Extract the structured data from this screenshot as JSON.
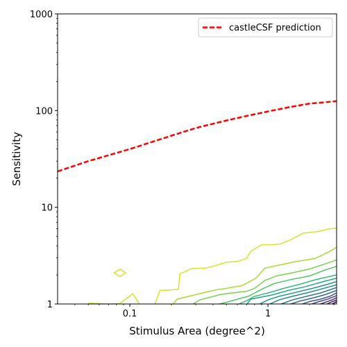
{
  "chart_data": {
    "type": "line",
    "title": "",
    "xlabel": "Stimulus Area (degree^2)",
    "ylabel": "Sensitivity",
    "xscale": "log",
    "yscale": "log",
    "xlim": [
      0.03,
      3.14
    ],
    "ylim": [
      1,
      1000
    ],
    "x_ticks": [
      {
        "value": 0.1,
        "label": "0.1"
      },
      {
        "value": 1,
        "label": "1"
      }
    ],
    "y_ticks": [
      {
        "value": 1,
        "label": "1"
      },
      {
        "value": 10,
        "label": "10"
      },
      {
        "value": 100,
        "label": "100"
      },
      {
        "value": 1000,
        "label": "1000"
      }
    ],
    "grid": false,
    "legend": {
      "position": "top-right",
      "entries": [
        "castleCSF prediction"
      ]
    },
    "series": [
      {
        "name": "castleCSF prediction",
        "style": "dashed",
        "color": "#ff0000",
        "x": [
          0.03,
          0.05,
          0.1,
          0.2,
          0.3,
          0.5,
          0.7,
          1.0,
          1.5,
          2.0,
          3.14
        ],
        "y": [
          23.5,
          30,
          40,
          55,
          66,
          79,
          88,
          98,
          110,
          118,
          125
        ]
      }
    ],
    "contours": [
      {
        "color": "#d6e22b",
        "x": [
          0.05,
          0.07,
          0.085,
          0.105,
          0.12,
          0.15,
          0.165,
          0.2,
          0.225,
          0.23,
          0.28,
          0.35,
          0.4,
          0.5,
          0.6,
          0.7,
          0.75,
          0.9,
          1.1,
          1.25,
          1.45,
          1.8,
          2.3,
          2.7,
          3.14
        ],
        "y": [
          1.02,
          1.0,
          1.01,
          1.28,
          0.95,
          0.95,
          1.38,
          1.4,
          1.42,
          2.05,
          2.32,
          2.35,
          2.45,
          2.7,
          2.75,
          2.95,
          3.5,
          4.1,
          4.1,
          4.2,
          4.6,
          5.4,
          5.6,
          5.95,
          6.1
        ]
      },
      {
        "color": "#d6e22b",
        "x": [
          0.085,
          0.093,
          0.085,
          0.077,
          0.085
        ],
        "y": [
          2.3,
          2.1,
          1.92,
          2.1,
          2.3
        ]
      },
      {
        "color": "#a5db36",
        "x": [
          0.2,
          0.22,
          0.3,
          0.42,
          0.5,
          0.65,
          0.82,
          0.95,
          1.25,
          1.6,
          2.2,
          2.8,
          3.14
        ],
        "y": [
          0.95,
          1.12,
          1.25,
          1.4,
          1.45,
          1.55,
          1.85,
          2.35,
          2.55,
          2.75,
          2.95,
          3.5,
          3.85
        ]
      },
      {
        "color": "#7ad151",
        "x": [
          0.28,
          0.32,
          0.45,
          0.55,
          0.7,
          0.8,
          0.95,
          1.15,
          1.5,
          2.0,
          2.6,
          3.14
        ],
        "y": [
          0.98,
          1.1,
          1.25,
          1.3,
          1.35,
          1.45,
          1.75,
          1.95,
          2.1,
          2.3,
          2.6,
          2.85
        ]
      },
      {
        "color": "#54c568",
        "x": [
          0.42,
          0.5,
          0.6,
          0.72,
          0.9,
          1.1,
          1.5,
          2.0,
          2.6,
          3.14
        ],
        "y": [
          0.98,
          1.04,
          1.12,
          1.2,
          1.42,
          1.62,
          1.8,
          1.95,
          2.25,
          2.45
        ]
      },
      {
        "color": "#35b779",
        "x": [
          0.6,
          0.7,
          0.8,
          1.0,
          1.3,
          1.7,
          2.2,
          3.14
        ],
        "y": [
          0.98,
          1.08,
          1.2,
          1.3,
          1.45,
          1.6,
          1.78,
          2.0
        ]
      },
      {
        "color": "#22a884",
        "x": [
          0.7,
          0.75,
          0.9,
          1.1,
          1.4,
          1.9,
          2.5,
          3.14
        ],
        "y": [
          0.98,
          1.12,
          1.18,
          1.25,
          1.38,
          1.52,
          1.7,
          1.85
        ]
      },
      {
        "color": "#1f988b",
        "x": [
          0.85,
          1.0,
          1.2,
          1.6,
          2.1,
          2.7,
          3.14
        ],
        "y": [
          0.98,
          1.1,
          1.2,
          1.32,
          1.45,
          1.6,
          1.7
        ]
      },
      {
        "color": "#23888e",
        "x": [
          1.0,
          1.2,
          1.5,
          1.9,
          2.4,
          3.14
        ],
        "y": [
          0.98,
          1.1,
          1.2,
          1.3,
          1.42,
          1.58
        ]
      },
      {
        "color": "#2a788e",
        "x": [
          1.2,
          1.5,
          1.9,
          2.4,
          3.14
        ],
        "y": [
          0.98,
          1.1,
          1.2,
          1.3,
          1.48
        ]
      },
      {
        "color": "#31688e",
        "x": [
          1.4,
          1.7,
          2.1,
          2.6,
          3.14
        ],
        "y": [
          0.98,
          1.07,
          1.15,
          1.25,
          1.38
        ]
      },
      {
        "color": "#39568c",
        "x": [
          1.7,
          2.0,
          2.4,
          2.8,
          3.14
        ],
        "y": [
          0.98,
          1.06,
          1.12,
          1.2,
          1.3
        ]
      },
      {
        "color": "#414487",
        "x": [
          2.0,
          2.3,
          2.7,
          3.14
        ],
        "y": [
          0.98,
          1.05,
          1.12,
          1.22
        ]
      },
      {
        "color": "#472d7b",
        "x": [
          2.3,
          2.6,
          2.9,
          3.14
        ],
        "y": [
          0.98,
          1.04,
          1.1,
          1.16
        ]
      },
      {
        "color": "#481a6c",
        "x": [
          2.6,
          2.85,
          3.14
        ],
        "y": [
          0.98,
          1.04,
          1.1
        ]
      },
      {
        "color": "#440154",
        "x": [
          2.85,
          3.0,
          3.14
        ],
        "y": [
          0.98,
          1.02,
          1.06
        ]
      }
    ]
  }
}
